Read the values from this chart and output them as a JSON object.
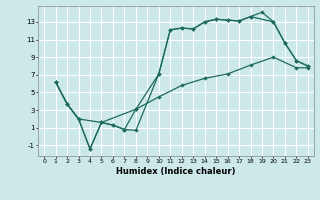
{
  "xlabel": "Humidex (Indice chaleur)",
  "bg_color": "#cce8e8",
  "grid_color": "#ffffff",
  "line_color": "#1e6b5e",
  "xlim": [
    -0.5,
    23.5
  ],
  "ylim": [
    -2.2,
    14.8
  ],
  "xticks": [
    0,
    1,
    2,
    3,
    4,
    5,
    6,
    7,
    8,
    9,
    10,
    11,
    12,
    13,
    14,
    15,
    16,
    17,
    18,
    19,
    20,
    21,
    22,
    23
  ],
  "yticks": [
    -1,
    1,
    3,
    5,
    7,
    9,
    11,
    13
  ],
  "line1": {
    "x": [
      1,
      2,
      3,
      4,
      5,
      6,
      7,
      8,
      10,
      11,
      12,
      13,
      14,
      15,
      16,
      17,
      18,
      19,
      20,
      21,
      22,
      23
    ],
    "y": [
      6.2,
      3.7,
      2.0,
      -1.4,
      1.6,
      1.3,
      0.8,
      0.7,
      7.1,
      12.1,
      12.3,
      12.2,
      13.0,
      13.3,
      13.2,
      13.1,
      13.6,
      14.1,
      13.0,
      10.6,
      8.6,
      8.0
    ]
  },
  "line2": {
    "x": [
      1,
      2,
      3,
      4,
      5,
      6,
      7,
      8,
      10,
      11,
      12,
      13,
      14,
      15,
      16,
      17,
      18,
      20,
      21,
      22,
      23
    ],
    "y": [
      6.2,
      3.7,
      2.0,
      -1.4,
      1.6,
      1.3,
      0.8,
      3.1,
      7.1,
      12.1,
      12.3,
      12.2,
      13.0,
      13.3,
      13.2,
      13.1,
      13.6,
      13.0,
      10.6,
      8.6,
      8.0
    ]
  },
  "line3": {
    "x": [
      1,
      2,
      3,
      5,
      8,
      10,
      12,
      14,
      16,
      18,
      20,
      22,
      23
    ],
    "y": [
      6.2,
      3.7,
      2.0,
      1.6,
      3.1,
      4.5,
      5.8,
      6.6,
      7.1,
      8.1,
      9.0,
      7.8,
      7.8
    ]
  }
}
